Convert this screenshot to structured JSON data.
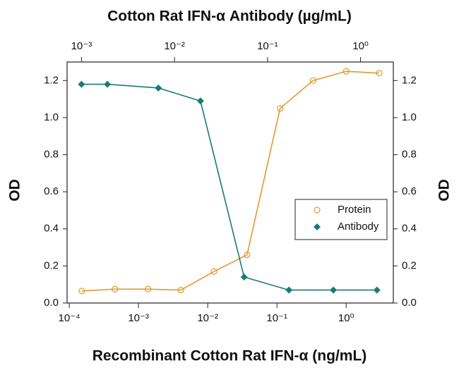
{
  "chart_data": {
    "type": "scatter",
    "title": "Cotton Rat IFN-α Antibody (µg/mL)",
    "x_label": "Recombinant Cotton Rat IFN-α (ng/mL)",
    "y_label": "OD",
    "y2_label": "OD",
    "xscale": "log",
    "x2scale": "log",
    "xlim": [
      9.3e-05,
      4.8
    ],
    "xticks": [
      {
        "value": 0.0001,
        "label": "10⁻⁴"
      },
      {
        "value": 0.001,
        "label": "10⁻³"
      },
      {
        "value": 0.01,
        "label": "10⁻²"
      },
      {
        "value": 0.1,
        "label": "10⁻¹"
      },
      {
        "value": 1,
        "label": "10⁰"
      }
    ],
    "x2lim": [
      0.0007,
      2.25
    ],
    "x2ticks": [
      {
        "value": 0.001,
        "label": "10⁻³"
      },
      {
        "value": 0.01,
        "label": "10⁻²"
      },
      {
        "value": 0.1,
        "label": "10⁻¹"
      },
      {
        "value": 1,
        "label": "10⁰"
      }
    ],
    "ylim": [
      0,
      1.3
    ],
    "yticks": [
      {
        "value": 0,
        "label": "0.0"
      },
      0.2,
      0.4,
      0.6,
      0.8,
      {
        "value": 1,
        "label": "1.0"
      },
      1.2
    ],
    "y2lim": [
      0,
      1.3
    ],
    "y2ticks": [
      {
        "value": 0,
        "label": "0.0"
      },
      0.2,
      0.4,
      0.6,
      0.8,
      {
        "value": 1,
        "label": "1.0"
      },
      1.2
    ],
    "legend": "right",
    "series": [
      {
        "name": "Protein",
        "color": "#e39a2e",
        "marker": "circle-open",
        "xaxis": "x",
        "x": [
          0.000152,
          0.000457,
          0.00137,
          0.0041,
          0.0123,
          0.037,
          0.111,
          0.333,
          1,
          3
        ],
        "values": [
          0.065,
          0.075,
          0.075,
          0.07,
          0.17,
          0.26,
          1.05,
          1.2,
          1.25,
          1.24
        ]
      },
      {
        "name": "Antibody",
        "color": "#1b7a78",
        "marker": "diamond",
        "xaxis": "x2",
        "x": [
          0.001,
          0.0019,
          0.0067,
          0.019,
          0.056,
          0.17,
          0.51,
          1.5
        ],
        "values": [
          1.18,
          1.18,
          1.16,
          1.09,
          0.14,
          0.07,
          0.07,
          0.07
        ]
      }
    ]
  }
}
